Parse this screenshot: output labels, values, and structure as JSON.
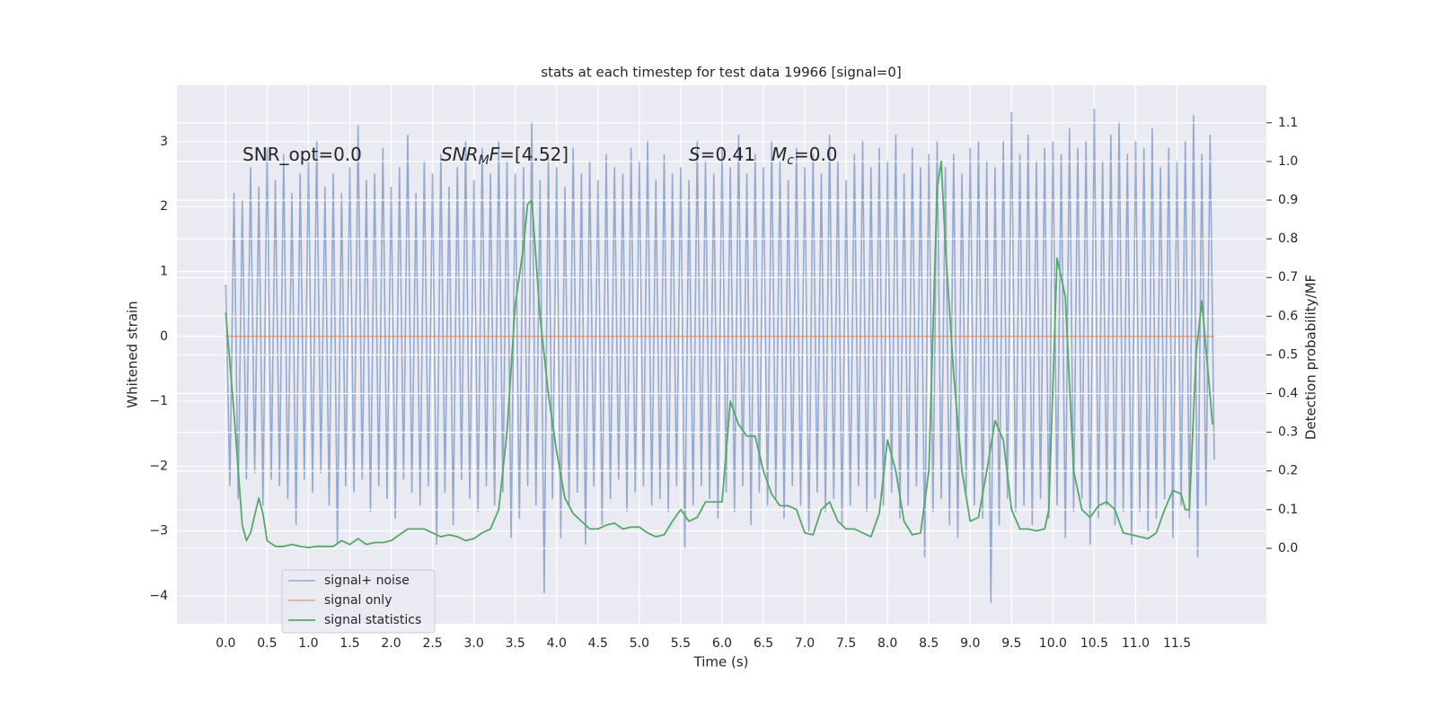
{
  "chart_data": {
    "type": "line",
    "title": "stats at each timestep for test data 19966 [signal=0]",
    "x_label": "Time (s)",
    "y_label": "Whitened strain",
    "y2_label": "Detection probability/MF",
    "xlim": [
      -0.59,
      12.58
    ],
    "ylim": [
      -4.43,
      3.87
    ],
    "y2lim": [
      -0.195,
      1.197
    ],
    "xticks": [
      {
        "value": 0,
        "label": "0.0"
      },
      0.5,
      {
        "value": 1,
        "label": "1.0"
      },
      1.5,
      {
        "value": 2,
        "label": "2.0"
      },
      2.5,
      {
        "value": 3,
        "label": "3.0"
      },
      3.5,
      {
        "value": 4,
        "label": "4.0"
      },
      4.5,
      {
        "value": 5,
        "label": "5.0"
      },
      5.5,
      {
        "value": 6,
        "label": "6.0"
      },
      6.5,
      {
        "value": 7,
        "label": "7.0"
      },
      7.5,
      {
        "value": 8,
        "label": "8.0"
      },
      8.5,
      {
        "value": 9,
        "label": "9.0"
      },
      9.5,
      {
        "value": 10,
        "label": "10.0"
      },
      10.5,
      {
        "value": 11,
        "label": "11.0"
      },
      11.5
    ],
    "yticks": [
      {
        "value": -4,
        "label": "−4"
      },
      {
        "value": -3,
        "label": "−3"
      },
      {
        "value": -2,
        "label": "−2"
      },
      {
        "value": -1,
        "label": "−1"
      },
      0,
      1,
      2,
      3
    ],
    "y2ticks": [
      {
        "value": 0,
        "label": "0.0"
      },
      0.1,
      0.2,
      0.3,
      0.4,
      0.5,
      0.6,
      0.7,
      0.8,
      0.9,
      {
        "value": 1,
        "label": "1.0"
      },
      1.1
    ],
    "grid": true,
    "legend": "lower left",
    "annotations": [
      {
        "segments": [
          {
            "text": "SNR_opt=0.0"
          }
        ]
      },
      {
        "segments": [
          {
            "text": "SNR",
            "style": "italic"
          },
          {
            "text": "M",
            "style": "sub-italic"
          },
          {
            "text": "F",
            "style": "italic"
          },
          {
            "text": "=[4.52]"
          }
        ]
      },
      {
        "segments": [
          {
            "text": "S",
            "style": "italic"
          },
          {
            "text": "=0.41"
          }
        ]
      },
      {
        "segments": [
          {
            "text": "M",
            "style": "italic"
          },
          {
            "text": "c",
            "style": "sub-italic"
          },
          {
            "text": "=0.0"
          }
        ]
      }
    ],
    "series": [
      {
        "name": "signal+ noise",
        "color": "#4c72b0",
        "axis": "y",
        "x": [
          0,
          0.05,
          0.1,
          0.15,
          0.2,
          0.25,
          0.3,
          0.35,
          0.4,
          0.45,
          0.5,
          0.55,
          0.6,
          0.65,
          0.7,
          0.75,
          0.8,
          0.85,
          0.9,
          0.95,
          1,
          1.05,
          1.1,
          1.15,
          1.2,
          1.25,
          1.3,
          1.35,
          1.4,
          1.45,
          1.5,
          1.55,
          1.6,
          1.65,
          1.7,
          1.75,
          1.8,
          1.85,
          1.9,
          1.95,
          2,
          2.05,
          2.1,
          2.15,
          2.2,
          2.25,
          2.3,
          2.35,
          2.4,
          2.45,
          2.5,
          2.55,
          2.6,
          2.65,
          2.7,
          2.75,
          2.8,
          2.85,
          2.9,
          2.95,
          3,
          3.05,
          3.1,
          3.15,
          3.2,
          3.25,
          3.3,
          3.35,
          3.4,
          3.45,
          3.5,
          3.55,
          3.6,
          3.65,
          3.7,
          3.75,
          3.8,
          3.85,
          3.9,
          3.95,
          4,
          4.05,
          4.1,
          4.15,
          4.2,
          4.25,
          4.3,
          4.35,
          4.4,
          4.45,
          4.5,
          4.55,
          4.6,
          4.65,
          4.7,
          4.75,
          4.8,
          4.85,
          4.9,
          4.95,
          5,
          5.05,
          5.1,
          5.15,
          5.2,
          5.25,
          5.3,
          5.35,
          5.4,
          5.45,
          5.5,
          5.55,
          5.6,
          5.65,
          5.7,
          5.75,
          5.8,
          5.85,
          5.9,
          5.95,
          6,
          6.05,
          6.1,
          6.15,
          6.2,
          6.25,
          6.3,
          6.35,
          6.4,
          6.45,
          6.5,
          6.55,
          6.6,
          6.65,
          6.7,
          6.75,
          6.8,
          6.85,
          6.9,
          6.95,
          7,
          7.05,
          7.1,
          7.15,
          7.2,
          7.25,
          7.3,
          7.35,
          7.4,
          7.45,
          7.5,
          7.55,
          7.6,
          7.65,
          7.7,
          7.75,
          7.8,
          7.85,
          7.9,
          7.95,
          8,
          8.05,
          8.1,
          8.15,
          8.2,
          8.25,
          8.3,
          8.35,
          8.4,
          8.45,
          8.5,
          8.55,
          8.6,
          8.65,
          8.7,
          8.75,
          8.8,
          8.85,
          8.9,
          8.95,
          9,
          9.05,
          9.1,
          9.15,
          9.2,
          9.25,
          9.3,
          9.35,
          9.4,
          9.45,
          9.5,
          9.55,
          9.6,
          9.65,
          9.7,
          9.75,
          9.8,
          9.85,
          9.9,
          9.95,
          10,
          10.05,
          10.1,
          10.15,
          10.2,
          10.25,
          10.3,
          10.35,
          10.4,
          10.45,
          10.5,
          10.55,
          10.6,
          10.65,
          10.7,
          10.75,
          10.8,
          10.85,
          10.9,
          10.95,
          11,
          11.05,
          11.1,
          11.15,
          11.2,
          11.25,
          11.3,
          11.35,
          11.4,
          11.45,
          11.5,
          11.55,
          11.6,
          11.65,
          11.7,
          11.75,
          11.8,
          11.85,
          11.9,
          11.95
        ],
        "values": [
          0.8,
          -2.3,
          2.2,
          -2.5,
          2.1,
          -2.2,
          2.6,
          -2.1,
          2.3,
          -2.6,
          2.9,
          -2.2,
          2.4,
          -2.3,
          2.8,
          -2.5,
          2.2,
          -2.9,
          2.5,
          -2.2,
          2.7,
          -2.4,
          3.0,
          -2.1,
          2.3,
          -2.6,
          2.5,
          -3.2,
          2.2,
          -2.3,
          2.6,
          -2.4,
          3.25,
          -2.2,
          2.4,
          -2.7,
          2.5,
          -2.3,
          2.9,
          -2.5,
          2.3,
          -2.8,
          2.6,
          -2.2,
          3.1,
          -2.4,
          2.2,
          -2.6,
          2.7,
          -2.3,
          2.5,
          -3.2,
          2.8,
          -2.4,
          2.3,
          -2.9,
          2.6,
          -2.2,
          3.0,
          -2.5,
          2.4,
          -2.7,
          2.9,
          -2.3,
          2.5,
          -2.6,
          3.0,
          -2.4,
          2.7,
          -3.1,
          2.5,
          -2.8,
          2.6,
          -2.3,
          3.3,
          -2.6,
          2.4,
          -3.95,
          2.8,
          -2.5,
          2.6,
          -3.1,
          2.3,
          -2.6,
          2.9,
          -2.4,
          2.5,
          -3.2,
          2.7,
          -2.3,
          2.4,
          -2.9,
          2.8,
          -2.5,
          2.6,
          -2.2,
          2.5,
          -2.7,
          2.9,
          -2.4,
          2.7,
          -2.3,
          3.0,
          -2.6,
          2.4,
          -2.5,
          2.8,
          -2.7,
          2.5,
          -2.3,
          2.6,
          -3.25,
          2.4,
          -2.6,
          3.0,
          -2.3,
          2.7,
          -2.5,
          2.5,
          -2.8,
          2.9,
          -2.4,
          2.6,
          -2.7,
          3.1,
          -2.3,
          2.5,
          -2.9,
          2.8,
          -2.4,
          2.6,
          -2.6,
          3.0,
          -2.5,
          2.7,
          -2.8,
          2.4,
          -2.3,
          2.9,
          -2.6,
          2.6,
          -3.0,
          2.8,
          -2.4,
          2.5,
          -2.7,
          3.1,
          -2.5,
          2.7,
          -2.9,
          2.4,
          -2.6,
          2.8,
          -2.3,
          3.0,
          -2.7,
          2.6,
          -2.5,
          2.9,
          -2.6,
          2.7,
          -2.4,
          3.1,
          -2.8,
          2.5,
          -2.6,
          2.9,
          -2.3,
          2.6,
          -3.4,
          2.8,
          -2.7,
          3.0,
          -2.5,
          2.6,
          -2.9,
          2.8,
          -3.1,
          2.5,
          -2.4,
          2.9,
          -2.6,
          3.0,
          -2.8,
          2.7,
          -4.1,
          2.6,
          -2.9,
          3.0,
          -2.5,
          3.45,
          -2.7,
          2.8,
          -2.6,
          3.1,
          -2.9,
          2.7,
          -2.5,
          2.9,
          -2.8,
          3.0,
          -2.6,
          2.8,
          -3.1,
          3.2,
          -2.7,
          2.9,
          -2.5,
          3.0,
          -3.2,
          3.5,
          -2.8,
          2.7,
          -2.6,
          3.1,
          -2.9,
          3.3,
          -2.7,
          2.8,
          -3.2,
          3.0,
          -2.7,
          2.9,
          -3.0,
          3.2,
          -2.8,
          2.6,
          -2.5,
          2.9,
          -3.1,
          2.7,
          -2.6,
          3.0,
          -2.8,
          3.4,
          -3.4,
          2.8,
          -2.6,
          3.1,
          -1.9
        ]
      },
      {
        "name": "signal only",
        "color": "#dd8452",
        "axis": "y",
        "x": [
          0,
          11.95
        ],
        "values": [
          0,
          0
        ]
      },
      {
        "name": "signal statistics",
        "color": "#55a868",
        "axis": "y2",
        "x": [
          0,
          0.1,
          0.2,
          0.25,
          0.3,
          0.4,
          0.45,
          0.5,
          0.6,
          0.7,
          0.8,
          0.9,
          1.0,
          1.1,
          1.2,
          1.3,
          1.4,
          1.5,
          1.6,
          1.7,
          1.8,
          1.9,
          2.0,
          2.1,
          2.2,
          2.3,
          2.4,
          2.5,
          2.6,
          2.7,
          2.8,
          2.9,
          3.0,
          3.1,
          3.2,
          3.3,
          3.4,
          3.5,
          3.6,
          3.65,
          3.7,
          3.8,
          3.9,
          4.0,
          4.1,
          4.2,
          4.3,
          4.4,
          4.5,
          4.6,
          4.7,
          4.8,
          4.9,
          5.0,
          5.1,
          5.2,
          5.3,
          5.4,
          5.5,
          5.6,
          5.7,
          5.8,
          5.9,
          6.0,
          6.1,
          6.2,
          6.3,
          6.4,
          6.5,
          6.6,
          6.7,
          6.8,
          6.9,
          7.0,
          7.1,
          7.2,
          7.3,
          7.4,
          7.5,
          7.6,
          7.7,
          7.8,
          7.9,
          8.0,
          8.1,
          8.2,
          8.3,
          8.4,
          8.5,
          8.6,
          8.65,
          8.7,
          8.8,
          8.9,
          9.0,
          9.1,
          9.2,
          9.3,
          9.4,
          9.5,
          9.6,
          9.7,
          9.8,
          9.9,
          9.95,
          10.05,
          10.15,
          10.25,
          10.35,
          10.45,
          10.55,
          10.65,
          10.75,
          10.85,
          10.95,
          11.05,
          11.15,
          11.25,
          11.35,
          11.45,
          11.55,
          11.6,
          11.65,
          11.73,
          11.8,
          11.93
        ],
        "values": [
          0.61,
          0.35,
          0.06,
          0.02,
          0.04,
          0.13,
          0.09,
          0.02,
          0.005,
          0.005,
          0.01,
          0.005,
          0.002,
          0.005,
          0.005,
          0.005,
          0.02,
          0.01,
          0.025,
          0.01,
          0.015,
          0.015,
          0.02,
          0.035,
          0.05,
          0.05,
          0.05,
          0.04,
          0.03,
          0.035,
          0.03,
          0.02,
          0.025,
          0.04,
          0.05,
          0.1,
          0.3,
          0.63,
          0.78,
          0.89,
          0.9,
          0.6,
          0.4,
          0.25,
          0.13,
          0.09,
          0.07,
          0.05,
          0.05,
          0.06,
          0.065,
          0.05,
          0.055,
          0.055,
          0.04,
          0.03,
          0.035,
          0.07,
          0.1,
          0.07,
          0.08,
          0.12,
          0.12,
          0.12,
          0.38,
          0.32,
          0.29,
          0.29,
          0.2,
          0.14,
          0.11,
          0.11,
          0.1,
          0.04,
          0.035,
          0.1,
          0.12,
          0.07,
          0.05,
          0.05,
          0.04,
          0.03,
          0.09,
          0.28,
          0.2,
          0.07,
          0.035,
          0.04,
          0.2,
          0.93,
          1.0,
          0.78,
          0.45,
          0.2,
          0.07,
          0.08,
          0.2,
          0.33,
          0.28,
          0.1,
          0.05,
          0.05,
          0.045,
          0.05,
          0.1,
          0.75,
          0.65,
          0.2,
          0.1,
          0.08,
          0.11,
          0.12,
          0.1,
          0.04,
          0.035,
          0.03,
          0.025,
          0.04,
          0.1,
          0.15,
          0.14,
          0.1,
          0.1,
          0.5,
          0.64,
          0.32
        ]
      }
    ]
  }
}
